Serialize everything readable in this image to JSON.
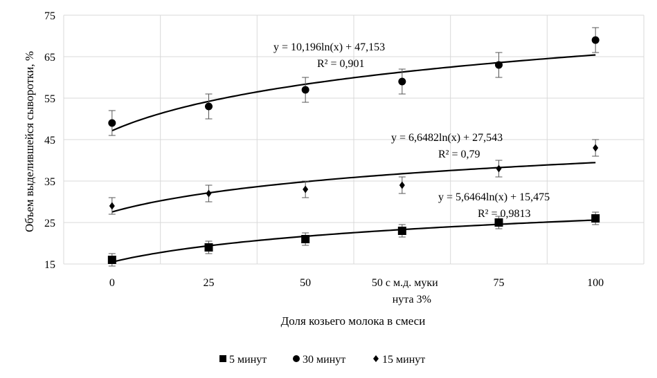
{
  "chart_data": {
    "type": "scatter",
    "xlabel": "Доля козьего молока в смеси",
    "ylabel": "Объем выделившейся сыворотки, %",
    "categories": [
      "0",
      "25",
      "50",
      "50 с м.д. муки нута 3%",
      "75",
      "100"
    ],
    "category_lines": [
      [
        "0"
      ],
      [
        "25"
      ],
      [
        "50"
      ],
      [
        "50 с м.д. муки",
        "нута 3%"
      ],
      [
        "75"
      ],
      [
        "100"
      ]
    ],
    "ylim": [
      15,
      75
    ],
    "yticks": [
      15,
      25,
      35,
      45,
      55,
      65,
      75
    ],
    "grid": true,
    "legend_position": "bottom",
    "series": [
      {
        "name": "5 минут",
        "marker": "square",
        "values": [
          16,
          19,
          21,
          23,
          25,
          26
        ],
        "errors": [
          1.5,
          1.5,
          1.5,
          1.5,
          1.5,
          1.5
        ],
        "trend": {
          "a": 5.6464,
          "b": 15.475
        },
        "equation": "y = 5,6464ln(x)  + 15,475",
        "r2": "R² = 0,9813"
      },
      {
        "name": "30 минут",
        "marker": "circle",
        "values": [
          49,
          53,
          57,
          59,
          63,
          69
        ],
        "errors": [
          3,
          3,
          3,
          3,
          3,
          3
        ],
        "trend": {
          "a": 10.196,
          "b": 47.153
        },
        "equation": "y = 10,196ln(x)  + 47,153",
        "r2": "R² = 0,901"
      },
      {
        "name": "15 минут",
        "marker": "diamond",
        "values": [
          29,
          32,
          33,
          34,
          38,
          43
        ],
        "errors": [
          2,
          2,
          2,
          2,
          2,
          2
        ],
        "trend": {
          "a": 6.6482,
          "b": 27.543
        },
        "equation": "y = 6,6482ln(x)  + 27,543",
        "r2": "R² = 0,79"
      }
    ]
  }
}
